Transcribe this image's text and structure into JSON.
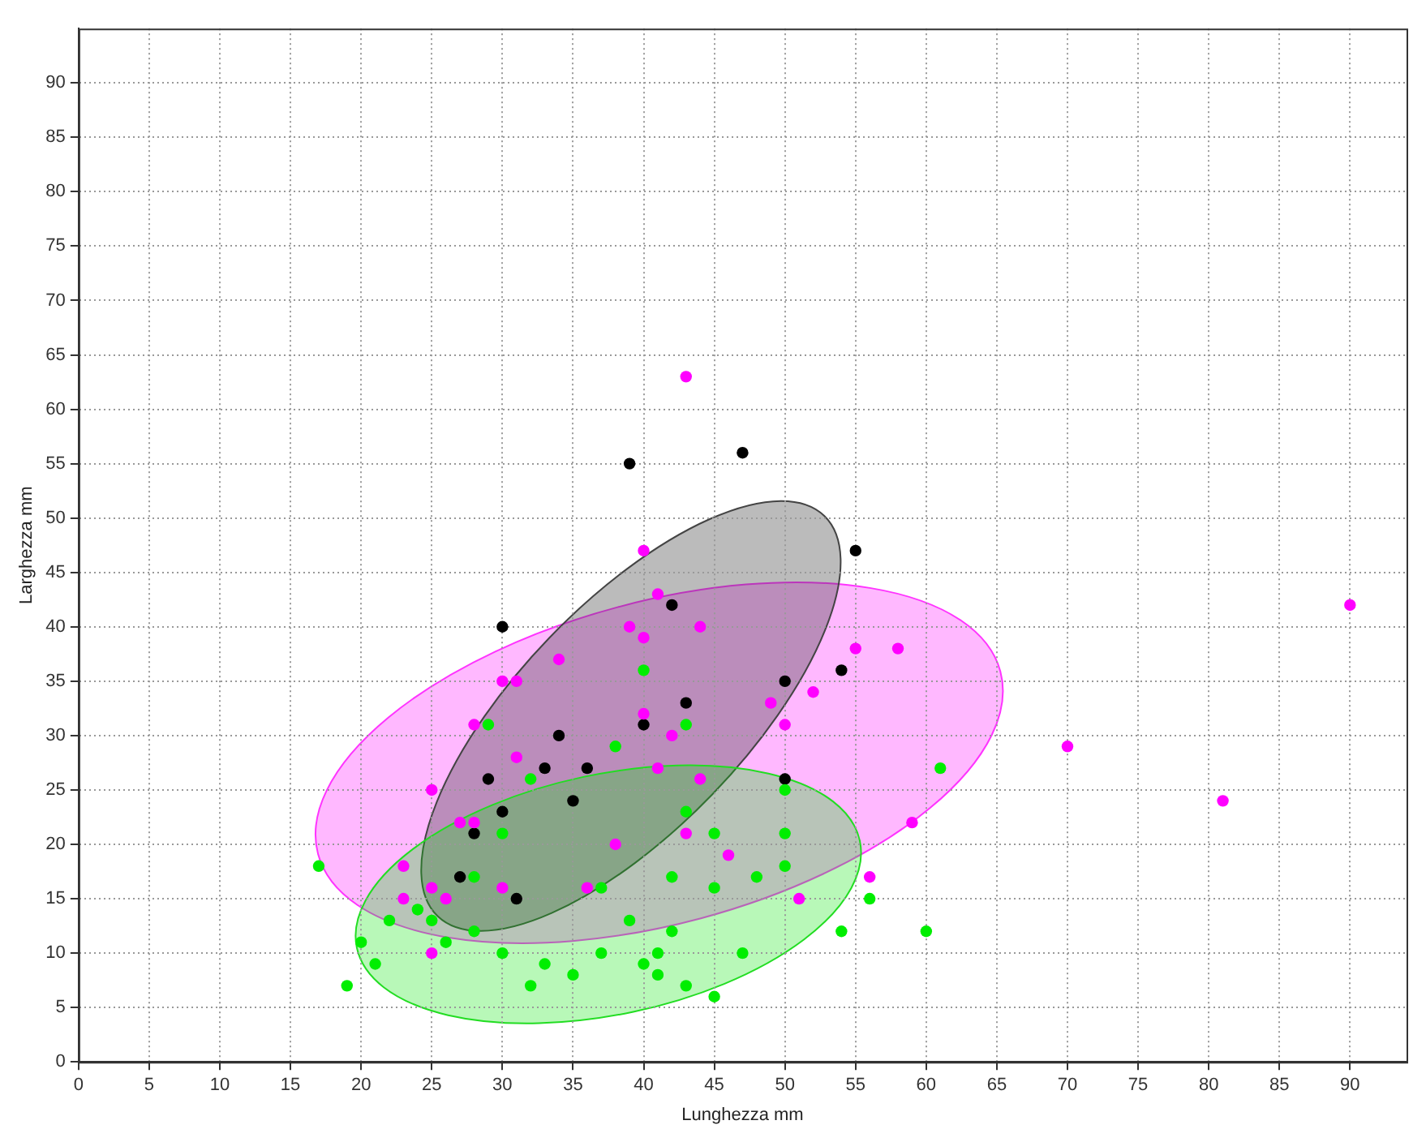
{
  "chart_data": {
    "type": "scatter",
    "xlabel": "Lunghezza mm",
    "ylabel": "Larghezza mm",
    "xlim": [
      0,
      94
    ],
    "ylim": [
      0,
      95
    ],
    "xticks": [
      0,
      5,
      10,
      15,
      20,
      25,
      30,
      35,
      40,
      45,
      50,
      55,
      60,
      65,
      70,
      75,
      80,
      85,
      90
    ],
    "yticks": [
      0,
      5,
      10,
      15,
      20,
      25,
      30,
      35,
      40,
      45,
      50,
      55,
      60,
      65,
      70,
      75,
      80,
      85,
      90
    ],
    "grid": true,
    "legend": false,
    "marker": "circle",
    "series": [
      {
        "color": "#00ee00",
        "x": [
          29,
          38,
          32,
          30,
          28,
          37,
          17,
          24,
          22,
          25,
          28,
          26,
          20,
          30,
          37,
          21,
          33,
          35,
          32,
          19,
          39,
          43,
          50,
          43,
          45,
          50,
          50,
          42,
          45,
          48,
          56,
          42,
          54,
          60,
          41,
          47,
          40,
          41,
          43,
          45,
          61,
          40
        ],
        "values": [
          31,
          29,
          26,
          21,
          17,
          16,
          18,
          14,
          13,
          13,
          12,
          11,
          11,
          10,
          10,
          9,
          9,
          8,
          7,
          7,
          13,
          31,
          25,
          23,
          21,
          21,
          18,
          17,
          16,
          17,
          15,
          12,
          12,
          12,
          10,
          10,
          9,
          8,
          7,
          6,
          27,
          36
        ]
      },
      {
        "color": "#ff00ff",
        "x": [
          43,
          40,
          41,
          39,
          40,
          44,
          55,
          58,
          52,
          49,
          50,
          34,
          30,
          31,
          28,
          31,
          25,
          27,
          28,
          38,
          23,
          25,
          23,
          26,
          30,
          36,
          25,
          40,
          42,
          41,
          44,
          43,
          46,
          56,
          51,
          59,
          70,
          81,
          90
        ],
        "values": [
          63,
          47,
          43,
          40,
          39,
          40,
          38,
          38,
          34,
          33,
          31,
          37,
          35,
          35,
          31,
          28,
          25,
          22,
          22,
          20,
          18,
          16,
          15,
          15,
          16,
          16,
          10,
          32,
          30,
          27,
          26,
          21,
          19,
          17,
          15,
          22,
          29,
          24,
          42
        ]
      },
      {
        "color": "#000000",
        "x": [
          39,
          47,
          55,
          30,
          42,
          54,
          50,
          43,
          34,
          40,
          33,
          36,
          29,
          50,
          35,
          30,
          28,
          27,
          31
        ],
        "values": [
          55,
          56,
          47,
          40,
          42,
          36,
          35,
          33,
          30,
          31,
          27,
          27,
          26,
          26,
          24,
          23,
          21,
          17,
          15
        ]
      }
    ]
  }
}
